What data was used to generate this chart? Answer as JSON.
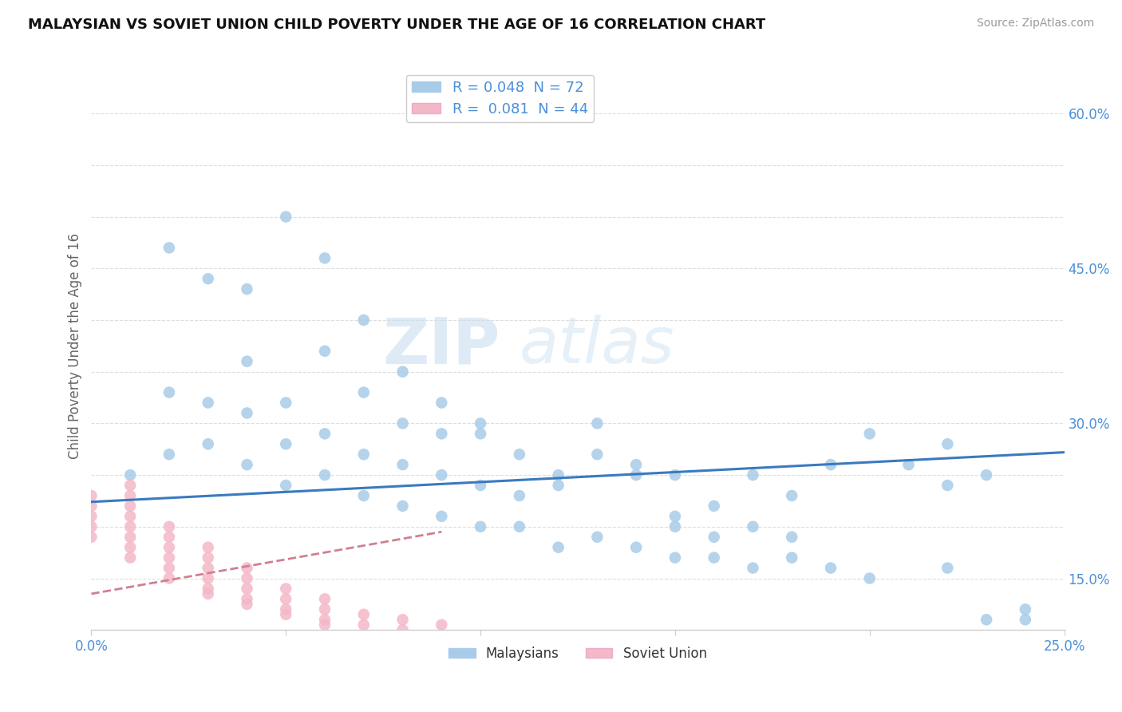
{
  "title": "MALAYSIAN VS SOVIET UNION CHILD POVERTY UNDER THE AGE OF 16 CORRELATION CHART",
  "source": "Source: ZipAtlas.com",
  "ylabel": "Child Poverty Under the Age of 16",
  "xlim": [
    0.0,
    0.25
  ],
  "ylim": [
    0.1,
    0.65
  ],
  "xticks": [
    0.0,
    0.05,
    0.1,
    0.15,
    0.2,
    0.25
  ],
  "xticklabels": [
    "0.0%",
    "",
    "",
    "",
    "",
    "25.0%"
  ],
  "ytick_positions": [
    0.15,
    0.2,
    0.25,
    0.3,
    0.35,
    0.4,
    0.45,
    0.5,
    0.55,
    0.6
  ],
  "ytick_labels": [
    "15.0%",
    "",
    "",
    "30.0%",
    "",
    "",
    "45.0%",
    "",
    "",
    "60.0%"
  ],
  "malaysians_R": "0.048",
  "malaysians_N": "72",
  "soviet_R": "0.081",
  "soviet_N": "44",
  "blue_color": "#a8cce8",
  "pink_color": "#f4b8c8",
  "blue_line_color": "#3a7abf",
  "pink_line_color": "#d08090",
  "axis_color": "#cccccc",
  "grid_color": "#dddddd",
  "watermark_zip": "ZIP",
  "watermark_atlas": "atlas",
  "malaysians_x": [
    0.01,
    0.02,
    0.02,
    0.03,
    0.03,
    0.04,
    0.04,
    0.04,
    0.05,
    0.05,
    0.05,
    0.06,
    0.06,
    0.06,
    0.07,
    0.07,
    0.07,
    0.08,
    0.08,
    0.08,
    0.09,
    0.09,
    0.09,
    0.1,
    0.1,
    0.1,
    0.11,
    0.11,
    0.12,
    0.12,
    0.13,
    0.13,
    0.14,
    0.14,
    0.15,
    0.15,
    0.15,
    0.16,
    0.16,
    0.17,
    0.17,
    0.18,
    0.18,
    0.19,
    0.19,
    0.2,
    0.2,
    0.21,
    0.22,
    0.22,
    0.23,
    0.24,
    0.02,
    0.03,
    0.04,
    0.05,
    0.06,
    0.07,
    0.08,
    0.09,
    0.1,
    0.11,
    0.12,
    0.13,
    0.14,
    0.15,
    0.16,
    0.17,
    0.18,
    0.22,
    0.23,
    0.24
  ],
  "malaysians_y": [
    0.25,
    0.27,
    0.33,
    0.28,
    0.32,
    0.26,
    0.31,
    0.36,
    0.24,
    0.28,
    0.32,
    0.25,
    0.29,
    0.37,
    0.23,
    0.27,
    0.33,
    0.22,
    0.26,
    0.3,
    0.21,
    0.25,
    0.29,
    0.2,
    0.24,
    0.29,
    0.2,
    0.23,
    0.18,
    0.24,
    0.19,
    0.27,
    0.18,
    0.26,
    0.17,
    0.21,
    0.25,
    0.17,
    0.22,
    0.16,
    0.25,
    0.17,
    0.23,
    0.16,
    0.26,
    0.15,
    0.29,
    0.26,
    0.16,
    0.24,
    0.11,
    0.11,
    0.47,
    0.44,
    0.43,
    0.5,
    0.46,
    0.4,
    0.35,
    0.32,
    0.3,
    0.27,
    0.25,
    0.3,
    0.25,
    0.2,
    0.19,
    0.2,
    0.19,
    0.28,
    0.25,
    0.12
  ],
  "soviet_x": [
    0.0,
    0.0,
    0.0,
    0.0,
    0.0,
    0.01,
    0.01,
    0.01,
    0.01,
    0.01,
    0.01,
    0.01,
    0.01,
    0.02,
    0.02,
    0.02,
    0.02,
    0.02,
    0.02,
    0.03,
    0.03,
    0.03,
    0.03,
    0.03,
    0.04,
    0.04,
    0.04,
    0.04,
    0.05,
    0.05,
    0.05,
    0.06,
    0.06,
    0.06,
    0.07,
    0.07,
    0.08,
    0.08,
    0.09,
    0.09,
    0.03,
    0.04,
    0.05,
    0.06
  ],
  "soviet_y": [
    0.19,
    0.2,
    0.21,
    0.22,
    0.23,
    0.17,
    0.18,
    0.19,
    0.2,
    0.21,
    0.22,
    0.23,
    0.24,
    0.15,
    0.16,
    0.17,
    0.18,
    0.19,
    0.2,
    0.14,
    0.15,
    0.16,
    0.17,
    0.18,
    0.13,
    0.14,
    0.15,
    0.16,
    0.12,
    0.13,
    0.14,
    0.11,
    0.12,
    0.13,
    0.105,
    0.115,
    0.1,
    0.11,
    0.095,
    0.105,
    0.135,
    0.125,
    0.115,
    0.105
  ],
  "blue_line_x0": 0.0,
  "blue_line_y0": 0.224,
  "blue_line_x1": 0.25,
  "blue_line_y1": 0.272,
  "pink_line_x0": 0.0,
  "pink_line_y0": 0.135,
  "pink_line_x1": 0.09,
  "pink_line_y1": 0.195
}
